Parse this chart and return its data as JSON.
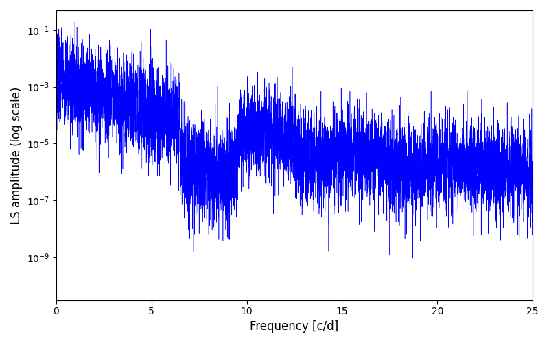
{
  "title": "",
  "xlabel": "Frequency [c/d]",
  "ylabel": "LS amplitude (log scale)",
  "xlim": [
    0,
    25
  ],
  "ylim": [
    3e-11,
    0.5
  ],
  "yscale": "log",
  "line_color": "blue",
  "linewidth": 0.4,
  "figsize": [
    8.0,
    5.0
  ],
  "dpi": 100,
  "freq_min": 0.0,
  "freq_max": 25.0,
  "n_points": 8000,
  "seed": 7
}
